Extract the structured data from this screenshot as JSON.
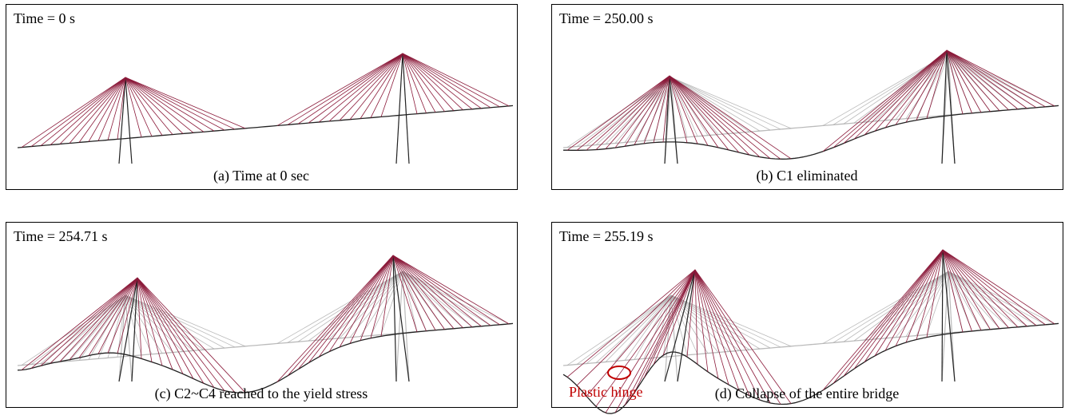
{
  "panels": [
    {
      "time_label": "Time = 0 s",
      "caption": "(a) Time at 0 sec"
    },
    {
      "time_label": "Time = 250.00 s",
      "caption": "(b) C1 eliminated"
    },
    {
      "time_label": "Time = 254.71 s",
      "caption": "(c) C2~C4 reached to the yield stress"
    },
    {
      "time_label": "Time = 255.19 s",
      "caption": "(d) Collapse of the entire bridge",
      "annotation": "Plastic hinge"
    }
  ]
}
